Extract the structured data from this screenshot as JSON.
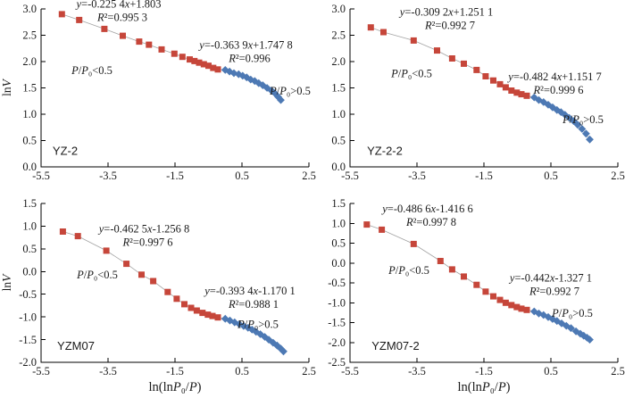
{
  "figure": {
    "xlabel": "ln(lnP₀/P)",
    "ylabel": "lnV",
    "xlim": [
      -5.5,
      2.5
    ],
    "xticks": {
      "values": [
        -5.5,
        -3.5,
        -1.5,
        0.5,
        2.5
      ],
      "labels": [
        "-5.5",
        "-3.5",
        "-1.5",
        "0.5",
        "2.5"
      ]
    },
    "colors": {
      "red_series": "#c6463a",
      "blue_series": "#4d79b4",
      "trend_line": "#a3a3a3",
      "axis": "#000000",
      "text": "#1a1a1a"
    }
  },
  "chart_data": [
    {
      "type": "scatter",
      "name": "YZ-2",
      "ylim": [
        0.0,
        3.0
      ],
      "yticks": [
        "3.0",
        "2.5",
        "2.0",
        "1.5",
        "1.0",
        "0.5",
        "0.0"
      ],
      "series": [
        {
          "name": "P/P0<0.5",
          "marker": "square",
          "color": "#c6463a",
          "points": [
            [
              -4.88,
              2.9
            ],
            [
              -4.36,
              2.79
            ],
            [
              -3.61,
              2.62
            ],
            [
              -3.06,
              2.49
            ],
            [
              -2.57,
              2.38
            ],
            [
              -2.28,
              2.32
            ],
            [
              -1.9,
              2.23
            ],
            [
              -1.52,
              2.15
            ],
            [
              -1.28,
              2.09
            ],
            [
              -1.06,
              2.04
            ],
            [
              -0.92,
              2.01
            ],
            [
              -0.78,
              1.98
            ],
            [
              -0.64,
              1.95
            ],
            [
              -0.5,
              1.92
            ],
            [
              -0.36,
              1.88
            ],
            [
              -0.22,
              1.85
            ]
          ]
        },
        {
          "name": "P/P0>0.5",
          "marker": "diamond",
          "color": "#4d79b4",
          "points": [
            [
              0.0,
              1.84
            ],
            [
              0.13,
              1.81
            ],
            [
              0.26,
              1.78
            ],
            [
              0.4,
              1.76
            ],
            [
              0.52,
              1.73
            ],
            [
              0.64,
              1.7
            ],
            [
              0.76,
              1.66
            ],
            [
              0.88,
              1.63
            ],
            [
              1.0,
              1.59
            ],
            [
              1.12,
              1.55
            ],
            [
              1.25,
              1.5
            ],
            [
              1.38,
              1.45
            ],
            [
              1.48,
              1.4
            ],
            [
              1.58,
              1.33
            ],
            [
              1.66,
              1.27
            ]
          ]
        }
      ],
      "fits": [
        {
          "line1": "y=-0.225 4x+1.803",
          "line2": "R²=0.995 3",
          "fx": 0.29,
          "fy": -0.03
        },
        {
          "line1": "y=-0.363 9x+1.747 8",
          "line2": "R²=0.996",
          "fx": 0.765,
          "fy": 0.23
        }
      ],
      "regions": [
        {
          "text": "P/P₀<0.5",
          "fx": 0.19,
          "fy": 0.39
        },
        {
          "text": "P/P₀>0.5",
          "fx": 0.93,
          "fy": 0.52
        }
      ],
      "sample_label": "YZ-2",
      "sample_fx": 0.09,
      "sample_fy": 0.9
    },
    {
      "type": "scatter",
      "name": "YZ-2-2",
      "ylim": [
        0.0,
        3.0
      ],
      "yticks": [
        "3.0",
        "2.5",
        "2.0",
        "1.5",
        "1.0",
        "0.5",
        "0.0"
      ],
      "series": [
        {
          "name": "P/P0<0.5",
          "marker": "square",
          "color": "#c6463a",
          "points": [
            [
              -4.88,
              2.65
            ],
            [
              -4.5,
              2.56
            ],
            [
              -3.6,
              2.4
            ],
            [
              -2.9,
              2.21
            ],
            [
              -2.45,
              2.06
            ],
            [
              -2.1,
              1.96
            ],
            [
              -1.72,
              1.84
            ],
            [
              -1.45,
              1.72
            ],
            [
              -1.22,
              1.64
            ],
            [
              -1.02,
              1.57
            ],
            [
              -0.85,
              1.51
            ],
            [
              -0.68,
              1.45
            ],
            [
              -0.52,
              1.41
            ],
            [
              -0.38,
              1.38
            ],
            [
              -0.22,
              1.35
            ]
          ]
        },
        {
          "name": "P/P0>0.5",
          "marker": "diamond",
          "color": "#4d79b4",
          "points": [
            [
              0.0,
              1.32
            ],
            [
              0.14,
              1.27
            ],
            [
              0.28,
              1.23
            ],
            [
              0.42,
              1.18
            ],
            [
              0.55,
              1.13
            ],
            [
              0.68,
              1.08
            ],
            [
              0.8,
              1.04
            ],
            [
              0.92,
              0.99
            ],
            [
              1.05,
              0.93
            ],
            [
              1.18,
              0.87
            ],
            [
              1.3,
              0.8
            ],
            [
              1.43,
              0.72
            ],
            [
              1.55,
              0.63
            ],
            [
              1.66,
              0.52
            ]
          ]
        }
      ],
      "fits": [
        {
          "line1": "y=-0.309 2x+1.251 1",
          "line2": "R²=0.992 7",
          "fx": 0.36,
          "fy": 0.02
        },
        {
          "line1": "y=-0.482 4x+1.151 7",
          "line2": "R²=0.999 6",
          "fx": 0.765,
          "fy": 0.43
        }
      ],
      "regions": [
        {
          "text": "P/P₀<0.5",
          "fx": 0.23,
          "fy": 0.41
        },
        {
          "text": "P/P₀>0.5",
          "fx": 0.87,
          "fy": 0.7
        }
      ],
      "sample_label": "YZ-2-2",
      "sample_fx": 0.13,
      "sample_fy": 0.9
    },
    {
      "type": "scatter",
      "name": "YZM07",
      "ylim": [
        -2.0,
        1.5
      ],
      "yticks": [
        "1.5",
        "1.0",
        "0.5",
        "0.0",
        "-0.5",
        "-1.0",
        "-1.5",
        "-2.0"
      ],
      "series": [
        {
          "name": "P/P0<0.5",
          "marker": "square",
          "color": "#c6463a",
          "points": [
            [
              -4.85,
              0.88
            ],
            [
              -4.4,
              0.78
            ],
            [
              -3.55,
              0.46
            ],
            [
              -2.95,
              0.17
            ],
            [
              -2.5,
              -0.07
            ],
            [
              -2.15,
              -0.21
            ],
            [
              -1.72,
              -0.45
            ],
            [
              -1.45,
              -0.6
            ],
            [
              -1.22,
              -0.72
            ],
            [
              -1.02,
              -0.8
            ],
            [
              -0.85,
              -0.86
            ],
            [
              -0.68,
              -0.91
            ],
            [
              -0.52,
              -0.95
            ],
            [
              -0.38,
              -0.98
            ],
            [
              -0.22,
              -1.01
            ]
          ]
        },
        {
          "name": "P/P0>0.5",
          "marker": "diamond",
          "color": "#4d79b4",
          "points": [
            [
              0.0,
              -1.04
            ],
            [
              0.14,
              -1.08
            ],
            [
              0.28,
              -1.12
            ],
            [
              0.42,
              -1.16
            ],
            [
              0.55,
              -1.2
            ],
            [
              0.68,
              -1.24
            ],
            [
              0.8,
              -1.28
            ],
            [
              0.92,
              -1.33
            ],
            [
              1.05,
              -1.38
            ],
            [
              1.18,
              -1.44
            ],
            [
              1.3,
              -1.5
            ],
            [
              1.43,
              -1.57
            ],
            [
              1.55,
              -1.63
            ],
            [
              1.66,
              -1.7
            ],
            [
              1.74,
              -1.76
            ]
          ]
        }
      ],
      "fits": [
        {
          "line1": "y=-0.462 5x-1.256 8",
          "line2": "R²=0.997 6",
          "fx": 0.385,
          "fy": 0.16
        },
        {
          "line1": "y=-0.393 4x-1.170 1",
          "line2": "R²=0.988 1",
          "fx": 0.78,
          "fy": 0.55
        }
      ],
      "regions": [
        {
          "text": "P/P₀<0.5",
          "fx": 0.21,
          "fy": 0.45
        },
        {
          "text": "P/P₀>0.5",
          "fx": 0.81,
          "fy": 0.76
        }
      ],
      "sample_label": "YZM07",
      "sample_fx": 0.13,
      "sample_fy": 0.9
    },
    {
      "type": "scatter",
      "name": "YZM07-2",
      "ylim": [
        -2.5,
        1.5
      ],
      "yticks": [
        "1.5",
        "1.0",
        "0.5",
        "0.0",
        "-0.5",
        "-1.0",
        "-1.5",
        "-2.0",
        "-2.5"
      ],
      "series": [
        {
          "name": "P/P0<0.5",
          "marker": "square",
          "color": "#c6463a",
          "points": [
            [
              -5.0,
              0.97
            ],
            [
              -4.55,
              0.84
            ],
            [
              -3.6,
              0.48
            ],
            [
              -2.8,
              0.05
            ],
            [
              -2.45,
              -0.16
            ],
            [
              -2.1,
              -0.34
            ],
            [
              -1.72,
              -0.55
            ],
            [
              -1.45,
              -0.72
            ],
            [
              -1.22,
              -0.84
            ],
            [
              -1.02,
              -0.93
            ],
            [
              -0.85,
              -1.0
            ],
            [
              -0.68,
              -1.06
            ],
            [
              -0.52,
              -1.11
            ],
            [
              -0.38,
              -1.15
            ],
            [
              -0.22,
              -1.18
            ]
          ]
        },
        {
          "name": "P/P0>0.5",
          "marker": "diamond",
          "color": "#4d79b4",
          "points": [
            [
              0.0,
              -1.22
            ],
            [
              0.14,
              -1.27
            ],
            [
              0.28,
              -1.31
            ],
            [
              0.42,
              -1.36
            ],
            [
              0.55,
              -1.41
            ],
            [
              0.68,
              -1.46
            ],
            [
              0.82,
              -1.52
            ],
            [
              0.96,
              -1.58
            ],
            [
              1.1,
              -1.64
            ],
            [
              1.25,
              -1.72
            ],
            [
              1.38,
              -1.78
            ],
            [
              1.48,
              -1.83
            ],
            [
              1.58,
              -1.88
            ],
            [
              1.66,
              -1.93
            ]
          ]
        }
      ],
      "fits": [
        {
          "line1": "y=-0.486 6x-1.416 6",
          "line2": "R²=0.997 8",
          "fx": 0.29,
          "fy": 0.034
        },
        {
          "line1": "y=-0.442x-1.327 1",
          "line2": "R²=0.992 7",
          "fx": 0.75,
          "fy": 0.47
        }
      ],
      "regions": [
        {
          "text": "P/P₀<0.5",
          "fx": 0.22,
          "fy": 0.42
        },
        {
          "text": "P/P₀>0.5",
          "fx": 0.83,
          "fy": 0.69
        }
      ],
      "sample_label": "YZM07-2",
      "sample_fx": 0.17,
      "sample_fy": 0.9
    }
  ]
}
